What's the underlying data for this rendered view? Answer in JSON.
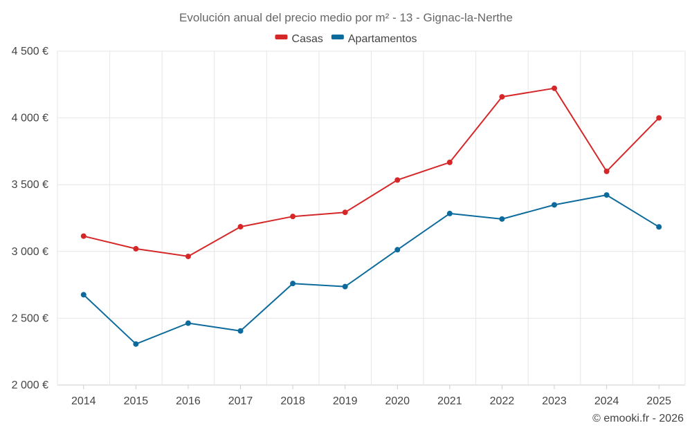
{
  "chart_data": {
    "type": "line",
    "title": "Evolución anual del precio medio por m² - 13 - Gignac-la-Nerthe",
    "categories": [
      "2014",
      "2015",
      "2016",
      "2017",
      "2018",
      "2019",
      "2020",
      "2021",
      "2022",
      "2023",
      "2024",
      "2025"
    ],
    "series": [
      {
        "name": "Casas",
        "color": "#d62728",
        "values": [
          3115,
          3020,
          2963,
          3185,
          3262,
          3293,
          3535,
          3667,
          4158,
          4222,
          3600,
          4000
        ]
      },
      {
        "name": "Apartamentos",
        "color": "#0d6a9c",
        "values": [
          2676,
          2307,
          2463,
          2405,
          2760,
          2737,
          3013,
          3284,
          3243,
          3349,
          3423,
          3184
        ]
      }
    ],
    "ylim": [
      2000,
      4500
    ],
    "yticks": [
      2000,
      2500,
      3000,
      3500,
      4000,
      4500
    ],
    "ytick_labels": [
      "2 000 €",
      "2 500 €",
      "3 000 €",
      "3 500 €",
      "4 000 €",
      "4 500 €"
    ],
    "xlabel": "",
    "ylabel": "",
    "legend": "top-center",
    "grid": true
  },
  "credit": "© emooki.fr - 2026"
}
